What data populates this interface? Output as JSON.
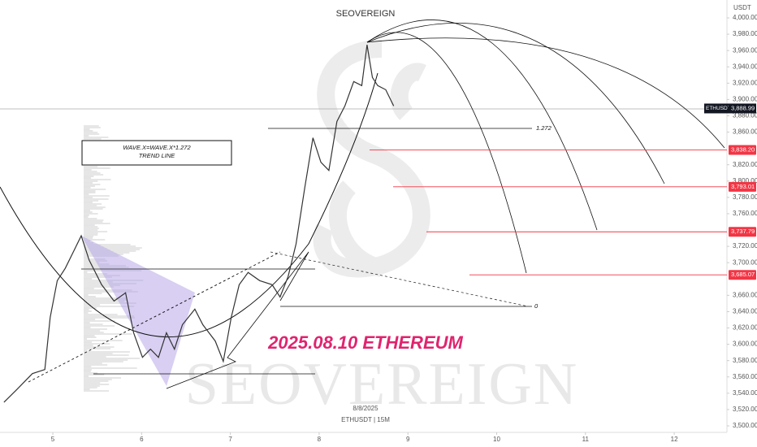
{
  "chart_data": {
    "type": "line",
    "title": "SEOVEREIGN",
    "watermark": "SEOVEREIGN",
    "y_label": "USDT",
    "annotations": [
      "WAVE.X=WAVE.X*1.272",
      "TREND LINE",
      "1.272",
      "0",
      "2025.08.10 ETHEREUM",
      "8/8/2025",
      "ETHUSDT | 15M"
    ],
    "xlim": [
      4.405,
      12.594
    ],
    "xticks": [
      5,
      6,
      7,
      8,
      9,
      10,
      11,
      12
    ],
    "ylim": [
      3470,
      4000
    ],
    "yticks": [
      {
        "value": 4000,
        "label": "4,000.00"
      },
      {
        "value": 3980,
        "label": "3,980.00"
      },
      {
        "value": 3960,
        "label": "3,960.00"
      },
      {
        "value": 3940,
        "label": "3,940.00"
      },
      {
        "value": 3920,
        "label": "3,920.00"
      },
      {
        "value": 3900,
        "label": "3,900.00"
      },
      {
        "value": 3880,
        "label": "3,880.00"
      },
      {
        "value": 3860,
        "label": "3,860.00"
      },
      {
        "value": 3820,
        "label": "3,820.00"
      },
      {
        "value": 3800,
        "label": "3,800.00"
      },
      {
        "value": 3780,
        "label": "3,780.00"
      },
      {
        "value": 3760,
        "label": "3,760.00"
      },
      {
        "value": 3720,
        "label": "3,720.00"
      },
      {
        "value": 3700,
        "label": "3,700.00"
      },
      {
        "value": 3660,
        "label": "3,660.00"
      },
      {
        "value": 3640,
        "label": "3,640.00"
      },
      {
        "value": 3620,
        "label": "3,620.00"
      },
      {
        "value": 3600,
        "label": "3,600.00"
      },
      {
        "value": 3580,
        "label": "3,580.00"
      },
      {
        "value": 3560,
        "label": "3,560.00"
      },
      {
        "value": 3540,
        "label": "3,540.00"
      },
      {
        "value": 3520,
        "label": "3,520.00"
      },
      {
        "value": 3500,
        "label": "3,500.00"
      }
    ],
    "series": [
      {
        "name": "ETHUSDT",
        "color": "#333333",
        "x": [
          4.45,
          4.59,
          4.77,
          4.91,
          4.97,
          5.05,
          5.14,
          5.23,
          5.32,
          5.41,
          5.55,
          5.69,
          5.82,
          5.91,
          6.01,
          6.1,
          6.19,
          6.28,
          6.37,
          6.46,
          6.6,
          6.69,
          6.83,
          6.92,
          7.01,
          7.1,
          7.2,
          7.33,
          7.47,
          7.56,
          7.65,
          7.74,
          7.84,
          7.93,
          8.02,
          8.11,
          8.2,
          8.29,
          8.39,
          8.48,
          8.54,
          8.6,
          8.66,
          8.75,
          8.84
        ],
        "values": [
          3529,
          3544,
          3564,
          3569,
          3633,
          3678,
          3693,
          3713,
          3733,
          3703,
          3673,
          3653,
          3663,
          3614,
          3584,
          3594,
          3584,
          3614,
          3594,
          3624,
          3643,
          3624,
          3604,
          3579,
          3633,
          3673,
          3688,
          3678,
          3673,
          3658,
          3683,
          3723,
          3793,
          3853,
          3823,
          3813,
          3873,
          3892,
          3922,
          3917,
          3967,
          3927,
          3917,
          3912,
          3892
        ]
      }
    ],
    "last_price": {
      "name": "ETHUSDT",
      "value": 3888.99,
      "label": "3,888.99",
      "color": "#131722"
    },
    "levels_color": "#f23645",
    "levels": [
      {
        "value": 3838.2,
        "label": "3,838.20"
      },
      {
        "value": 3793.01,
        "label": "3,793.01"
      },
      {
        "value": 3737.79,
        "label": "3,737.79"
      },
      {
        "value": 3685.07,
        "label": "3,685.07"
      }
    ]
  }
}
